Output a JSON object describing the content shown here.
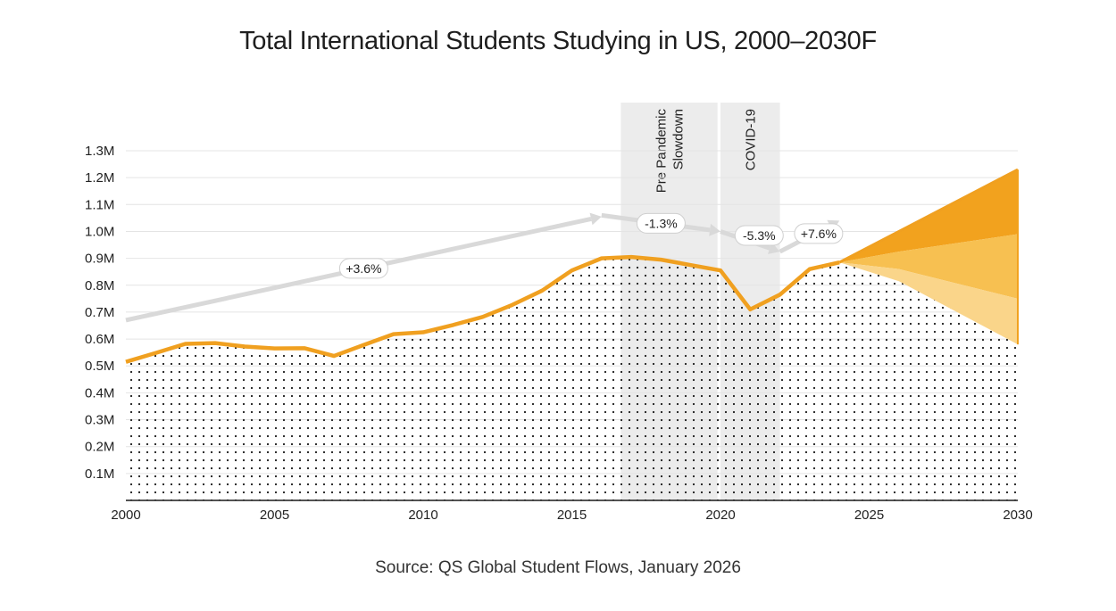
{
  "chart_data": {
    "type": "area",
    "title": "Total International Students Studying in US, 2000–2030F",
    "source": "Source: QS Global Student Flows, January 2026",
    "x": [
      2000,
      2001,
      2002,
      2003,
      2004,
      2005,
      2006,
      2007,
      2008,
      2009,
      2010,
      2011,
      2012,
      2013,
      2014,
      2015,
      2016,
      2017,
      2018,
      2019,
      2020,
      2021,
      2022,
      2023,
      2024
    ],
    "series": [
      {
        "values": [
          0.515,
          0.548,
          0.582,
          0.585,
          0.572,
          0.565,
          0.566,
          0.537,
          0.578,
          0.618,
          0.625,
          0.652,
          0.682,
          0.727,
          0.78,
          0.855,
          0.9,
          0.905,
          0.895,
          0.875,
          0.855,
          0.71,
          0.765,
          0.86,
          0.885
        ]
      }
    ],
    "forecast": {
      "x": [
        2024,
        2026,
        2030
      ],
      "high": [
        0.885,
        1.0,
        1.23
      ],
      "mid_high": [
        0.885,
        0.925,
        0.99
      ],
      "mid_low": [
        0.885,
        0.86,
        0.75
      ],
      "low": [
        0.885,
        0.815,
        0.58
      ]
    },
    "trend_arrows": [
      {
        "label": "+3.6%",
        "from": [
          2000,
          0.67
        ],
        "to": [
          2016,
          1.055
        ]
      },
      {
        "label": "-1.3%",
        "from": [
          2016,
          1.06
        ],
        "to": [
          2020,
          1.0
        ]
      },
      {
        "label": "-5.3%",
        "from": [
          2020,
          1.0
        ],
        "to": [
          2022,
          0.925
        ]
      },
      {
        "label": "+7.6%",
        "from": [
          2022,
          0.925
        ],
        "to": [
          2024,
          1.04
        ]
      }
    ],
    "periods": [
      {
        "label": "Pre Pandemic\nSlowdown",
        "from": 2016.65,
        "to": 2019.9
      },
      {
        "label": "COVID-19",
        "from": 2020.0,
        "to": 2022.0
      }
    ],
    "xticks": [
      "2000",
      "2005",
      "2010",
      "2015",
      "2020",
      "2025",
      "2030"
    ],
    "yticks": [
      "0.1M",
      "0.2M",
      "0.3M",
      "0.4M",
      "0.5M",
      "0.6M",
      "0.7M",
      "0.8M",
      "0.9M",
      "1.0M",
      "1.1M",
      "1.2M",
      "1.3M"
    ],
    "xlim": [
      2000,
      2030
    ],
    "ylim": [
      0,
      1.3
    ],
    "grid": true,
    "colors": {
      "line": "#f0a020",
      "forecast_high": "#f2a21e",
      "forecast_mid": "#f7c051",
      "forecast_low": "#fad58a",
      "dots": "#1a1a1a",
      "arrow": "#d9d9d9",
      "period_band": "#ececec",
      "grid": "#e4e4e4"
    }
  }
}
